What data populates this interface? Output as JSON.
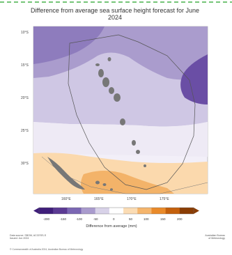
{
  "title": "Difference from average sea surface height forecast for June 2024",
  "latitude_labels": [
    "10°S",
    "15°S",
    "20°S",
    "25°S",
    "30°S"
  ],
  "longitude_labels": [
    "160°E",
    "165°E",
    "170°E",
    "175°E"
  ],
  "colorbar": {
    "title": "Difference from average (mm)",
    "tick_labels": [
      "-200",
      "-150",
      "-100",
      "-50",
      "0",
      "50",
      "100",
      "150",
      "200"
    ],
    "colors": [
      "#3f1e7a",
      "#5b3a93",
      "#7b67b3",
      "#a99bcd",
      "#d8d2e8",
      "#ffffff",
      "#fbdcb4",
      "#f5b56c",
      "#e98a2a",
      "#c4600c",
      "#8a3d04"
    ]
  },
  "footer": {
    "left_line1": "Data source: SBOM, ACCESS-S",
    "left_line2": "Issued: Jun 2024",
    "right_line1": "Australian Bureau",
    "right_line2": "of Meteorology",
    "bottom": "© Commonwealth of Australia 2024, Australian Bureau of Meteorology"
  }
}
